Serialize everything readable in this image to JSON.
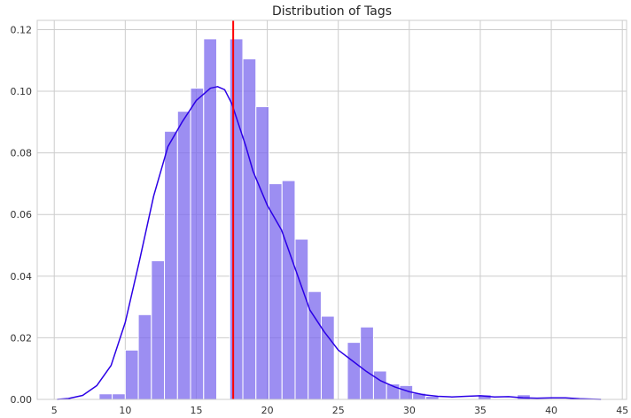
{
  "chart_data": {
    "type": "bar",
    "title": "Distribution of Tags",
    "xlabel": "",
    "ylabel": "",
    "xlim": [
      3.8,
      45.3
    ],
    "ylim": [
      0,
      0.123
    ],
    "grid": true,
    "legend": "none",
    "xticks": [
      5,
      10,
      15,
      20,
      25,
      30,
      35,
      40,
      45
    ],
    "yticks": [
      0.0,
      0.02,
      0.04,
      0.06,
      0.08,
      0.1,
      0.12
    ],
    "ytick_labels": [
      "0.00",
      "0.02",
      "0.04",
      "0.06",
      "0.08",
      "0.10",
      "0.12"
    ],
    "histogram": {
      "bin_width": 0.918,
      "bins": [
        {
          "x0": 8.16,
          "value": 0.0018
        },
        {
          "x0": 9.08,
          "value": 0.0018
        },
        {
          "x0": 10.0,
          "value": 0.016
        },
        {
          "x0": 10.92,
          "value": 0.0275
        },
        {
          "x0": 11.84,
          "value": 0.045
        },
        {
          "x0": 12.76,
          "value": 0.087
        },
        {
          "x0": 13.68,
          "value": 0.0935
        },
        {
          "x0": 14.6,
          "value": 0.101
        },
        {
          "x0": 15.52,
          "value": 0.117
        },
        {
          "x0": 16.44,
          "value": 0.0
        },
        {
          "x0": 17.36,
          "value": 0.117
        },
        {
          "x0": 18.28,
          "value": 0.1105
        },
        {
          "x0": 19.2,
          "value": 0.095
        },
        {
          "x0": 20.12,
          "value": 0.07
        },
        {
          "x0": 21.04,
          "value": 0.071
        },
        {
          "x0": 21.96,
          "value": 0.052
        },
        {
          "x0": 22.88,
          "value": 0.035
        },
        {
          "x0": 23.8,
          "value": 0.027
        },
        {
          "x0": 24.72,
          "value": 0.0
        },
        {
          "x0": 25.64,
          "value": 0.0185
        },
        {
          "x0": 26.56,
          "value": 0.0235
        },
        {
          "x0": 27.48,
          "value": 0.0092
        },
        {
          "x0": 28.4,
          "value": 0.005
        },
        {
          "x0": 29.32,
          "value": 0.0045
        },
        {
          "x0": 30.24,
          "value": 0.002
        },
        {
          "x0": 31.16,
          "value": 0.001
        },
        {
          "x0": 34.84,
          "value": 0.0015
        },
        {
          "x0": 37.6,
          "value": 0.0015
        },
        {
          "x0": 41.28,
          "value": 0.0005
        }
      ],
      "color": "#7b68ee",
      "fill_opacity": 0.75
    },
    "kde": {
      "color": "#2b00e6",
      "x": [
        5.2,
        6,
        7,
        8,
        9,
        10,
        11,
        12,
        13,
        14,
        15,
        16,
        16.5,
        17,
        17.5,
        18,
        18.5,
        19,
        20,
        21,
        22,
        23,
        24,
        25,
        26,
        27,
        28,
        29,
        30,
        31,
        32,
        33,
        34,
        35,
        36,
        37,
        38,
        39,
        40,
        41,
        42,
        43.5
      ],
      "y": [
        0.0,
        0.0003,
        0.0013,
        0.0045,
        0.011,
        0.025,
        0.045,
        0.066,
        0.082,
        0.09,
        0.097,
        0.101,
        0.1015,
        0.1005,
        0.096,
        0.089,
        0.082,
        0.074,
        0.063,
        0.055,
        0.042,
        0.029,
        0.022,
        0.016,
        0.0125,
        0.009,
        0.006,
        0.004,
        0.0025,
        0.0015,
        0.001,
        0.0008,
        0.001,
        0.0012,
        0.0008,
        0.0009,
        0.0005,
        0.0004,
        0.0005,
        0.0005,
        0.0002,
        0.0
      ]
    },
    "mean_line": {
      "x": 17.6,
      "color": "#ff0000"
    }
  }
}
